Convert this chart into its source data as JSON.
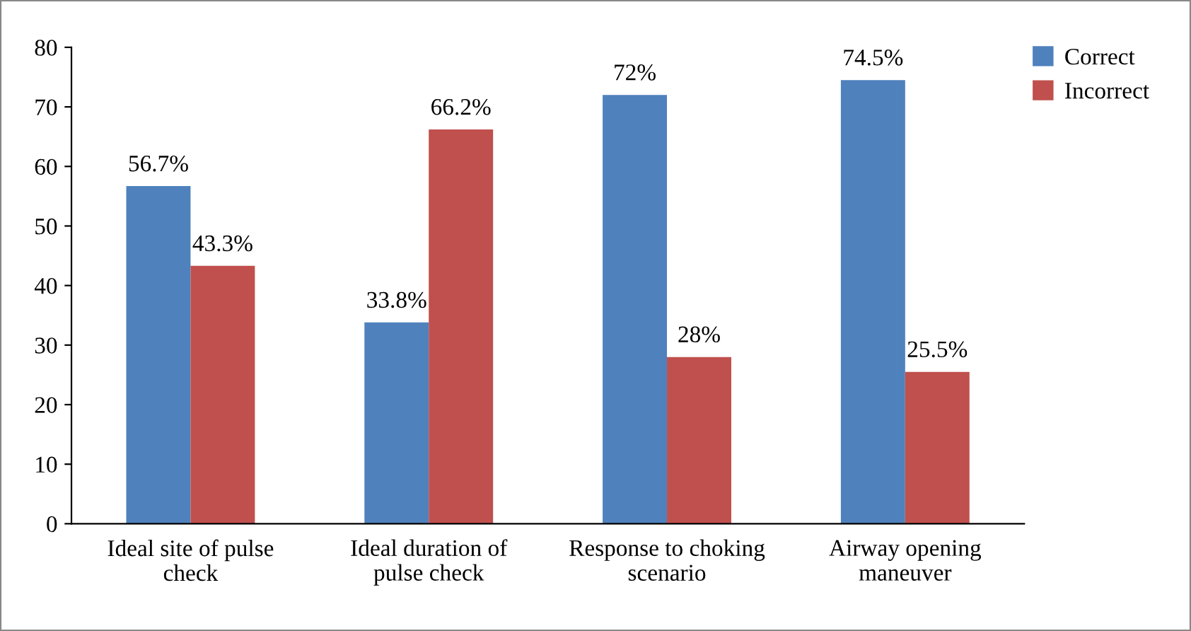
{
  "chart_data": {
    "type": "bar",
    "categories": [
      "Ideal site of pulse\ncheck",
      "Ideal duration of\npulse check",
      "Response to choking\nscenario",
      "Airway opening\nmaneuver"
    ],
    "series": [
      {
        "name": "Correct",
        "color": "#4f81bd",
        "values": [
          56.7,
          33.8,
          72,
          74.5
        ],
        "value_labels": [
          "56.7%",
          "33.8%",
          "72%",
          "74.5%"
        ]
      },
      {
        "name": "Incorrect",
        "color": "#c0504d",
        "values": [
          43.3,
          66.2,
          28,
          25.5
        ],
        "value_labels": [
          "43.3%",
          "66.2%",
          "28%",
          "25.5%"
        ]
      }
    ],
    "ylim": [
      0,
      80
    ],
    "yticks": [
      0,
      10,
      20,
      30,
      40,
      50,
      60,
      70,
      80
    ],
    "grid": false,
    "legend": "top right"
  }
}
